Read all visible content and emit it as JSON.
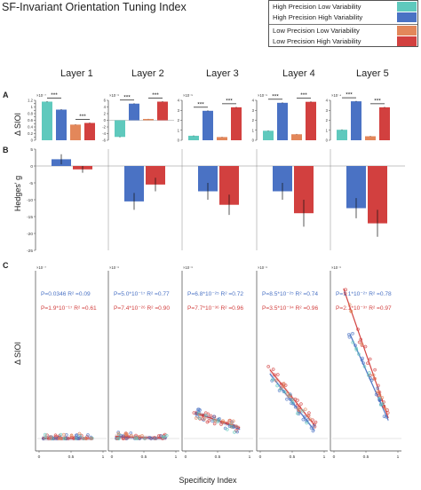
{
  "figure": {
    "title": "SF-Invariant Orientation Tuning Index",
    "panel_labels": [
      "A",
      "B",
      "C"
    ],
    "layers": [
      "Layer 1",
      "Layer 2",
      "Layer 3",
      "Layer 4",
      "Layer 5"
    ],
    "ylabel_a": "Δ SIOI",
    "ylabel_b": "Hedges' g",
    "ylabel_c": "Δ SIOI",
    "xlabel_c": "Specificity Index",
    "sig_marker": "***"
  },
  "legend": {
    "rows": [
      {
        "text": "High Precision Low Variability",
        "color": "#5fc9bd"
      },
      {
        "text": "High Precision High Variability",
        "color": "#4a72c4"
      },
      {
        "text": "Low Precision  Low Variability",
        "color": "#e3875a"
      },
      {
        "text": "Low Precision  High Variability",
        "color": "#d2403f"
      }
    ]
  },
  "colors": {
    "teal": "#5fc9bd",
    "blue": "#4a72c4",
    "orange": "#e3875a",
    "red": "#d2403f",
    "stat_blue": "#4a72c4",
    "stat_red": "#d2403f"
  },
  "chart_data": [
    {
      "panel": "A",
      "type": "bar",
      "ylabel": "Δ SIOI",
      "series_order": [
        "High Precision Low Variability",
        "High Precision High Variability",
        "Low Precision  Low Variability",
        "Low Precision  High Variability"
      ],
      "layers": [
        {
          "name": "Layer 1",
          "exp": "×10⁻⁷",
          "ylim": [
            0,
            1.2
          ],
          "yticks": [
            0,
            0.1,
            0.2,
            0.3,
            0.4,
            0.5,
            0.6,
            0.7,
            0.8,
            0.9,
            1,
            1.1,
            1.2
          ],
          "ytick_labels": [
            "0",
            "0.1",
            "0.2",
            "0.3",
            "0.4",
            "0.5",
            "0.6",
            "0.7",
            "0.8",
            "0.9",
            "1",
            "1.1",
            "1.2"
          ],
          "values": [
            1.16,
            0.92,
            0.47,
            0.52
          ],
          "errors": [
            0.015,
            0.012,
            0.01,
            0.012
          ]
        },
        {
          "name": "Layer 2",
          "exp": "×10⁻⁶",
          "ylim": [
            -6,
            6
          ],
          "yticks": [
            -6,
            -4,
            -2,
            0,
            2,
            4,
            6
          ],
          "ytick_labels": [
            "-6",
            "-4",
            "-2",
            "0",
            "2",
            "4",
            "6"
          ],
          "values": [
            -5.0,
            5.0,
            0.4,
            5.6
          ],
          "errors": [
            0.12,
            0.12,
            0.05,
            0.12
          ]
        },
        {
          "name": "Layer 3",
          "exp": "×10⁻⁵",
          "ylim": [
            0,
            4
          ],
          "yticks": [
            0,
            1,
            2,
            3,
            4
          ],
          "ytick_labels": [
            "0",
            "1",
            "2",
            "3",
            "4"
          ],
          "values": [
            0.45,
            2.95,
            0.32,
            3.3
          ],
          "errors": [
            0.04,
            0.05,
            0.03,
            0.05
          ]
        },
        {
          "name": "Layer 4",
          "exp": "×10⁻⁵",
          "ylim": [
            0,
            4
          ],
          "yticks": [
            0,
            1,
            2,
            3,
            4
          ],
          "ytick_labels": [
            "0",
            "1",
            "2",
            "3",
            "4"
          ],
          "values": [
            0.95,
            3.75,
            0.6,
            3.85
          ],
          "errors": [
            0.04,
            0.05,
            0.03,
            0.05
          ]
        },
        {
          "name": "Layer 5",
          "exp": "×10⁻⁴",
          "ylim": [
            0,
            4
          ],
          "yticks": [
            0,
            1,
            2,
            3,
            4
          ],
          "ytick_labels": [
            "0",
            "1",
            "2",
            "3",
            "4"
          ],
          "values": [
            1.05,
            3.9,
            0.4,
            3.3
          ],
          "errors": [
            0.04,
            0.05,
            0.03,
            0.05
          ]
        }
      ]
    },
    {
      "panel": "B",
      "type": "bar",
      "ylabel": "Hedges' g",
      "ylim": [
        -25,
        5
      ],
      "yticks": [
        5,
        0,
        -5,
        -10,
        -15,
        -20,
        -25
      ],
      "ytick_labels": [
        "5",
        "0",
        "-5",
        "-10",
        "-15",
        "-20",
        "-25"
      ],
      "series": [
        "High Precision",
        "Low Precision"
      ],
      "values": [
        [
          2.0,
          -1.0
        ],
        [
          -10.5,
          -5.5
        ],
        [
          -7.5,
          -11.5
        ],
        [
          -7.5,
          -14.0
        ],
        [
          -12.5,
          -17.0
        ]
      ],
      "errors": [
        [
          1.5,
          1.0
        ],
        [
          2.5,
          2.0
        ],
        [
          2.5,
          3.0
        ],
        [
          2.5,
          4.0
        ],
        [
          3.0,
          4.0
        ]
      ]
    },
    {
      "panel": "C",
      "type": "scatter",
      "xlabel": "Specificity Index",
      "ylabel": "Δ SIOI",
      "xlim": [
        0,
        1
      ],
      "xticks": [
        0,
        0.5,
        1
      ],
      "xtick_labels": [
        "0",
        "0.5",
        "1"
      ],
      "layers": [
        {
          "name": "Layer 1",
          "exp": "×10⁻⁷",
          "ylim": [
            0,
            6
          ],
          "stat_blue": "P=0.0346  R² =0.09",
          "stat_red": "P=1.9*10⁻¹⁷ R² =0.61",
          "fit_blue": [
            [
              0.05,
              0.0
            ],
            [
              0.85,
              0.0
            ]
          ],
          "fit_red": [
            [
              0.05,
              0.02
            ],
            [
              0.85,
              0.0
            ]
          ]
        },
        {
          "name": "Layer 2",
          "exp": "×10⁻⁶",
          "ylim": [
            0,
            6
          ],
          "stat_blue": "P=5.0*10⁻¹⁷ R² =0.77",
          "stat_red": "P=7.4*10⁻²⁶ R² =0.90",
          "fit_blue": [
            [
              0.05,
              0.06
            ],
            [
              0.85,
              0.0
            ]
          ],
          "fit_red": [
            [
              0.05,
              0.08
            ],
            [
              0.85,
              0.01
            ]
          ]
        },
        {
          "name": "Layer 3",
          "exp": "×10⁻⁶",
          "ylim": [
            0,
            6
          ],
          "stat_blue": "P=6.8*10⁻²⁵ R² =0.72",
          "stat_red": "P=7.7*10⁻³⁶ R² =0.96",
          "fit_blue": [
            [
              0.15,
              1.0
            ],
            [
              0.85,
              0.35
            ]
          ],
          "fit_red": [
            [
              0.15,
              0.95
            ],
            [
              0.85,
              0.42
            ]
          ]
        },
        {
          "name": "Layer 4",
          "exp": "×10⁻⁶",
          "ylim": [
            0,
            6
          ],
          "stat_blue": "P=8.5*10⁻²⁵ R² =0.74",
          "stat_red": "P=3.5*10⁻³⁴ R² =0.96",
          "fit_blue": [
            [
              0.15,
              2.45
            ],
            [
              0.85,
              0.3
            ]
          ],
          "fit_red": [
            [
              0.15,
              2.6
            ],
            [
              0.85,
              0.5
            ]
          ]
        },
        {
          "name": "Layer 5",
          "exp": "×10⁻⁶",
          "ylim": [
            0,
            7
          ],
          "stat_blue": "P=1.1*10⁻²⁷ R² =0.78",
          "stat_red": "P=2.1*10⁻³⁷ R² =0.97",
          "fit_blue": [
            [
              0.25,
              4.6
            ],
            [
              0.85,
              0.8
            ]
          ],
          "fit_red": [
            [
              0.15,
              6.6
            ],
            [
              0.85,
              0.9
            ]
          ]
        }
      ]
    }
  ]
}
